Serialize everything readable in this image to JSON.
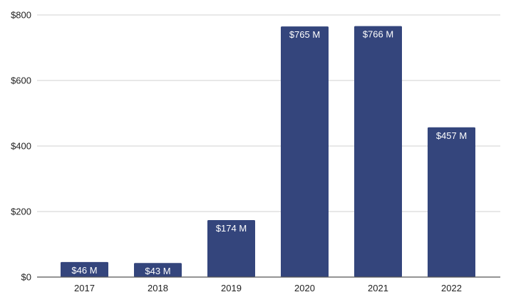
{
  "colors": {
    "bar": "#34457c",
    "grid": "#d0d0d0",
    "text": "#222222"
  },
  "chart_data": {
    "type": "bar",
    "categories": [
      "2017",
      "2018",
      "2019",
      "2020",
      "2021",
      "2022"
    ],
    "values": [
      46,
      43,
      174,
      765,
      766,
      457
    ],
    "data_labels": [
      "$46 M",
      "$43 M",
      "$174 M",
      "$765 M",
      "$766 M",
      "$457 M"
    ],
    "yticks": [
      0,
      200,
      400,
      600,
      800
    ],
    "ytick_labels": [
      "$0",
      "$200",
      "$400",
      "$600",
      "$800"
    ],
    "ylim": [
      0,
      800
    ],
    "grid": true,
    "title": "",
    "xlabel": "",
    "ylabel": ""
  }
}
